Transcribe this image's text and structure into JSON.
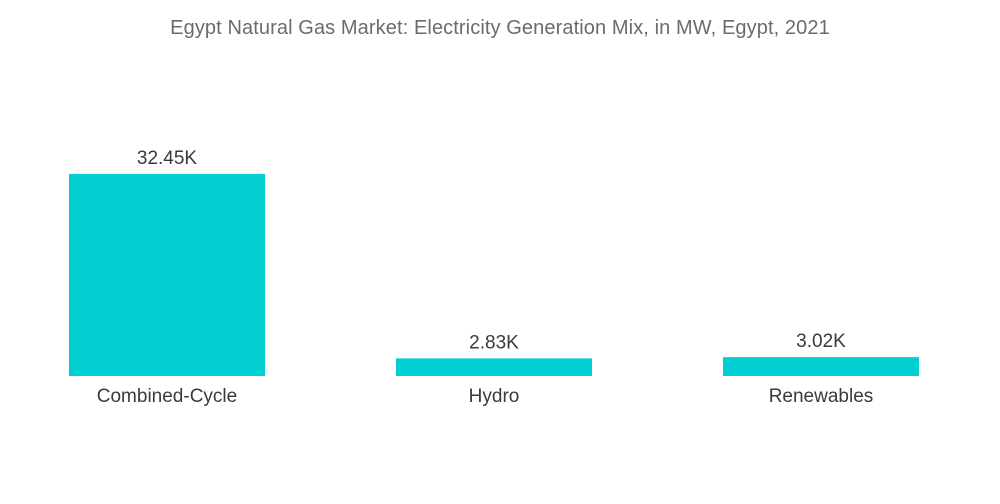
{
  "chart_data": {
    "type": "bar",
    "title": "Egypt Natural Gas Market: Electricity Generation Mix, in MW, Egypt, 2021",
    "xlabel": "",
    "ylabel": "",
    "categories": [
      "Combined-Cycle",
      "Hydro",
      "Renewables"
    ],
    "values": [
      32450,
      2830,
      3020
    ],
    "value_labels": [
      "32.45K",
      "2.83K",
      "3.02K"
    ],
    "ylim": [
      0,
      35000
    ],
    "grid": false,
    "legend": "none",
    "bar_color": "#00CED1"
  }
}
